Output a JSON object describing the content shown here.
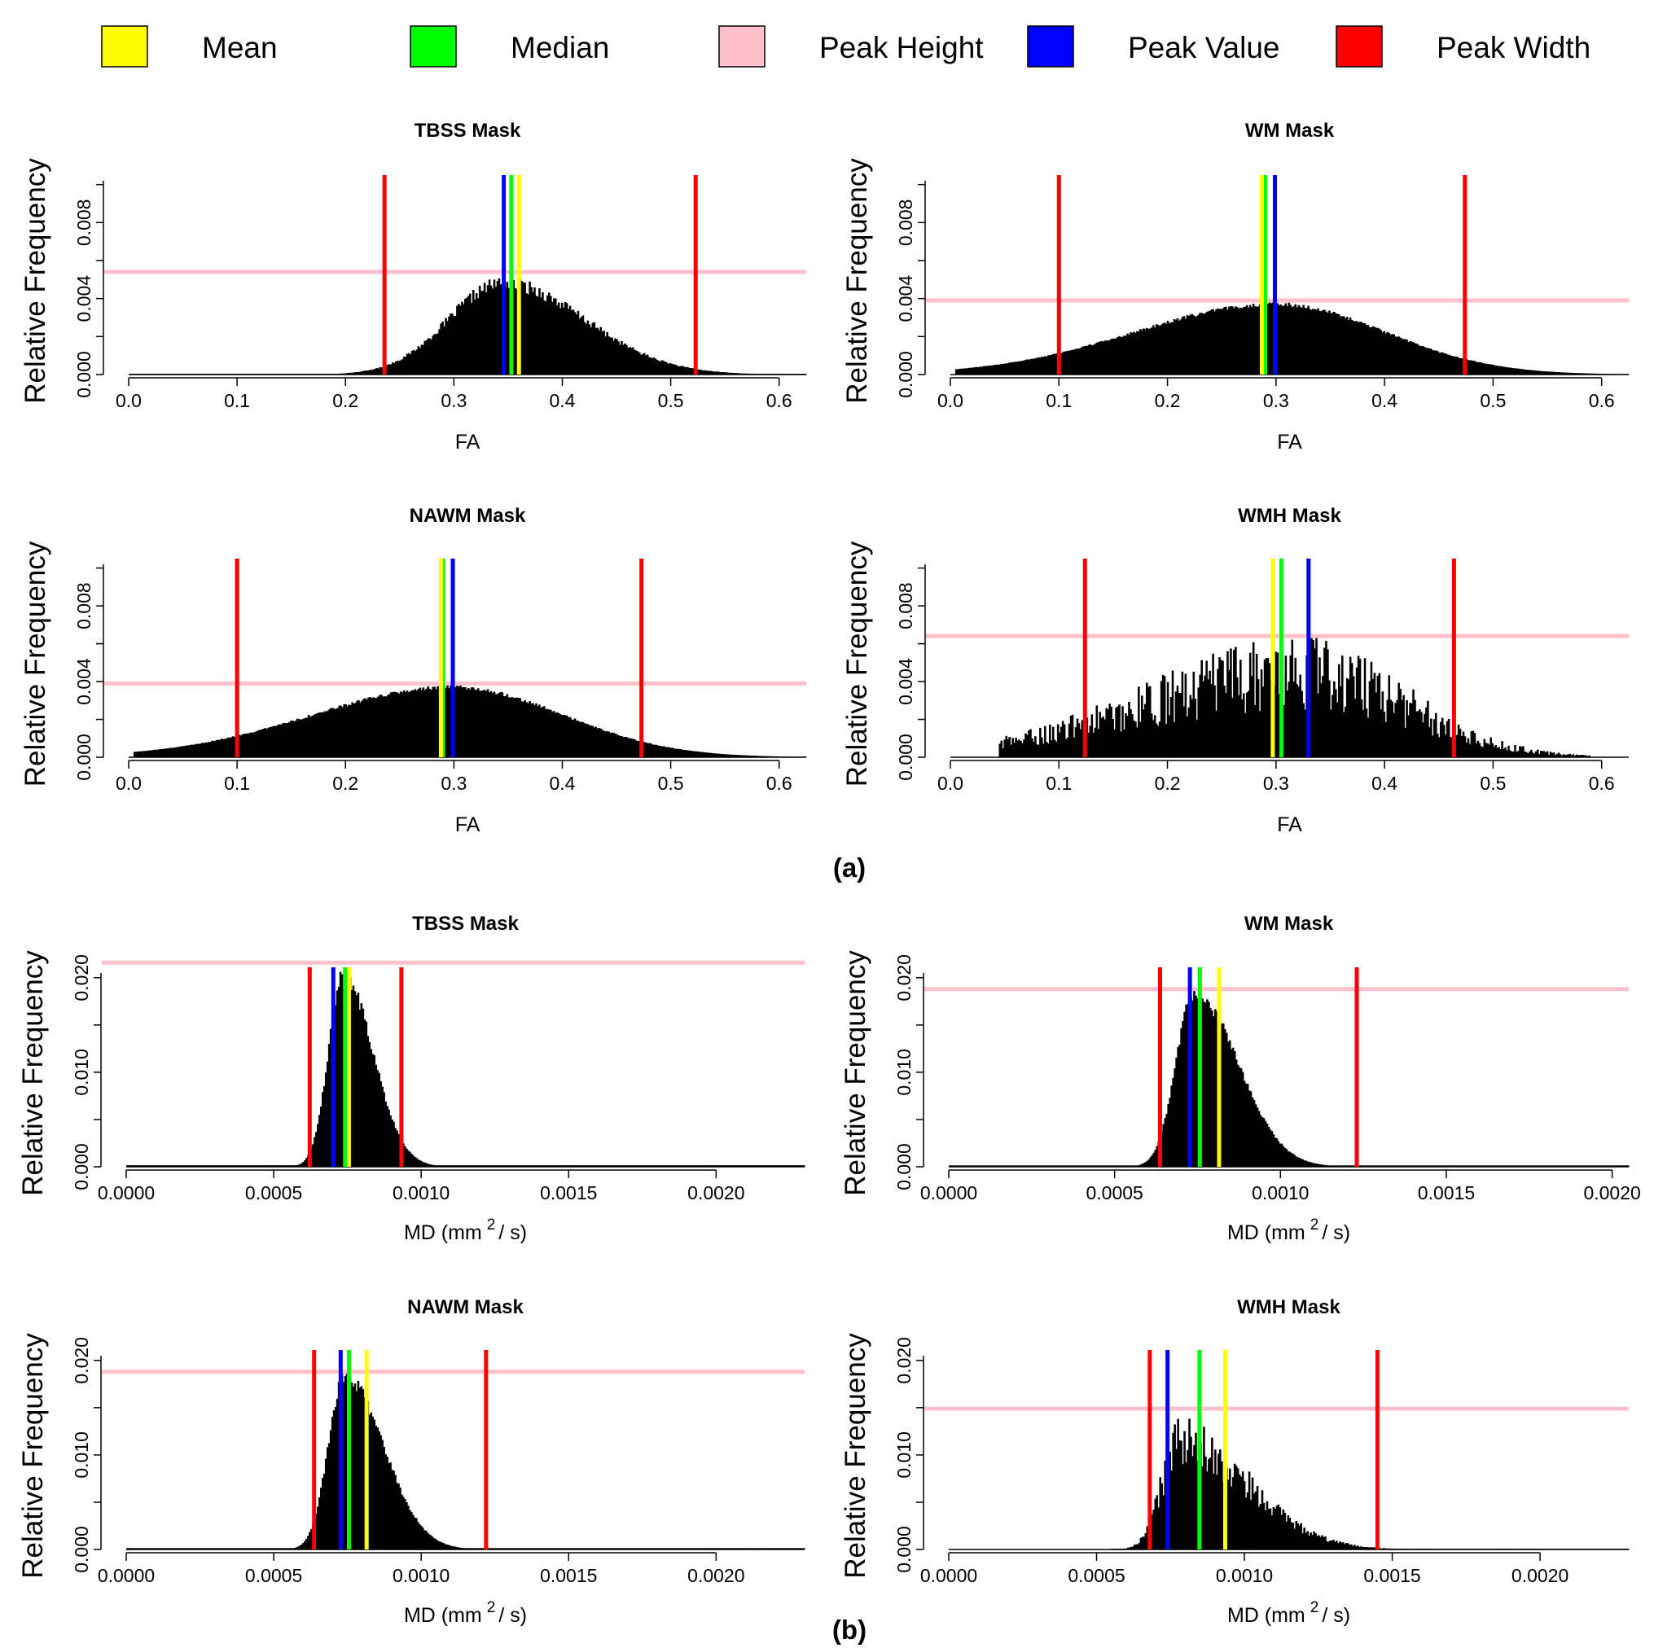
{
  "legend": [
    {
      "label": "Mean",
      "color": "#ffff00"
    },
    {
      "label": "Median",
      "color": "#00ff00"
    },
    {
      "label": "Peak Height",
      "color": "#ffc0cb"
    },
    {
      "label": "Peak Value",
      "color": "#0000ff"
    },
    {
      "label": "Peak Width",
      "color": "#ff0000"
    }
  ],
  "panel_labels": [
    "(a)",
    "(b)"
  ],
  "chart_data": [
    {
      "type": "bar",
      "title": "TBSS Mask",
      "xlabel": "FA",
      "ylabel": "Relative Frequency",
      "xlim": [
        0,
        0.625
      ],
      "ylim": [
        0,
        0.0102
      ],
      "xticks": [
        "0.0",
        "0.1",
        "0.2",
        "0.3",
        "0.4",
        "0.5",
        "0.6"
      ],
      "yticks": [
        "0.000",
        "0.004",
        "0.008"
      ],
      "distribution": {
        "start": 0.0,
        "end": 0.625,
        "peak_x": 0.345,
        "sigma_left": 0.05,
        "sigma_right": 0.075,
        "peak": 0.0048,
        "noise": 0.08
      },
      "markers": {
        "mean": 0.36,
        "median": 0.353,
        "peak_value": 0.346,
        "peak_height": 0.0054,
        "peak_width": [
          0.236,
          0.523
        ]
      }
    },
    {
      "type": "bar",
      "title": "WM Mask",
      "xlabel": "FA",
      "ylabel": "Relative Frequency",
      "xlim": [
        0,
        0.625
      ],
      "ylim": [
        0,
        0.0102
      ],
      "xticks": [
        "0.0",
        "0.1",
        "0.2",
        "0.3",
        "0.4",
        "0.5",
        "0.6"
      ],
      "yticks": [
        "0.000",
        "0.004",
        "0.008"
      ],
      "distribution": {
        "start": 0.005,
        "end": 0.625,
        "peak_x": 0.3,
        "sigma_left": 0.13,
        "sigma_right": 0.1,
        "peak": 0.0037,
        "noise": 0.03
      },
      "markers": {
        "mean": 0.287,
        "median": 0.29,
        "peak_value": 0.299,
        "peak_height": 0.0039,
        "peak_width": [
          0.1,
          0.474
        ]
      }
    },
    {
      "type": "bar",
      "title": "NAWM Mask",
      "xlabel": "FA",
      "ylabel": "Relative Frequency",
      "xlim": [
        0,
        0.625
      ],
      "ylim": [
        0,
        0.0102
      ],
      "xticks": [
        "0.0",
        "0.1",
        "0.2",
        "0.3",
        "0.4",
        "0.5",
        "0.6"
      ],
      "yticks": [
        "0.000",
        "0.004",
        "0.008"
      ],
      "distribution": {
        "start": 0.005,
        "end": 0.625,
        "peak_x": 0.3,
        "sigma_left": 0.13,
        "sigma_right": 0.1,
        "peak": 0.0037,
        "noise": 0.03
      },
      "markers": {
        "mean": 0.288,
        "median": 0.29,
        "peak_value": 0.299,
        "peak_height": 0.0039,
        "peak_width": [
          0.1,
          0.473
        ]
      }
    },
    {
      "type": "bar",
      "title": "WMH Mask",
      "xlabel": "FA",
      "ylabel": "Relative Frequency",
      "xlim": [
        0,
        0.625
      ],
      "ylim": [
        0,
        0.0102
      ],
      "xticks": [
        "0.0",
        "0.1",
        "0.2",
        "0.3",
        "0.4",
        "0.5",
        "0.6"
      ],
      "yticks": [
        "0.000",
        "0.004",
        "0.008"
      ],
      "distribution": {
        "start": 0.045,
        "end": 0.59,
        "peak_x": 0.33,
        "sigma_left": 0.15,
        "sigma_right": 0.09,
        "peak": 0.0045,
        "noise": 0.45
      },
      "markers": {
        "mean": 0.297,
        "median": 0.305,
        "peak_value": 0.33,
        "peak_height": 0.0064,
        "peak_width": [
          0.124,
          0.464
        ]
      }
    },
    {
      "type": "bar",
      "title": "TBSS Mask",
      "xlabel": "MD (mm",
      "xlabel_sup": "2",
      "xlabel_tail": "/ s)",
      "ylabel": "Relative Frequency",
      "xlim": [
        0,
        0.0023
      ],
      "ylim": [
        0,
        0.0205
      ],
      "xticks": [
        "0.0000",
        "0.0005",
        "0.0010",
        "0.0015",
        "0.0020"
      ],
      "yticks": [
        "0.000",
        "0.010",
        "0.020"
      ],
      "distribution": {
        "start": 0.0,
        "end": 0.0023,
        "peak_x": 0.000735,
        "sigma_left": 5e-05,
        "sigma_right": 0.0001,
        "peak": 0.0202,
        "noise": 0.04
      },
      "markers": {
        "mean": 0.000755,
        "median": 0.000742,
        "peak_value": 0.000702,
        "peak_height": 0.0216,
        "peak_width": [
          0.000622,
          0.000933
        ]
      }
    },
    {
      "type": "bar",
      "title": "WM Mask",
      "xlabel": "MD (mm",
      "xlabel_sup": "2",
      "xlabel_tail": "/ s)",
      "ylabel": "Relative Frequency",
      "xlim": [
        0,
        0.00205
      ],
      "ylim": [
        0,
        0.0205
      ],
      "xticks": [
        "0.0000",
        "0.0005",
        "0.0010",
        "0.0015",
        "0.0020"
      ],
      "yticks": [
        "0.000",
        "0.010",
        "0.020"
      ],
      "distribution": {
        "start": 0.0,
        "end": 0.00205,
        "peak_x": 0.00074,
        "sigma_left": 5.5e-05,
        "sigma_right": 0.00013,
        "peak": 0.0183,
        "noise": 0.04
      },
      "markers": {
        "mean": 0.000815,
        "median": 0.000757,
        "peak_value": 0.000727,
        "peak_height": 0.0188,
        "peak_width": [
          0.000637,
          0.00123
        ]
      }
    },
    {
      "type": "bar",
      "title": "NAWM Mask",
      "xlabel": "MD (mm",
      "xlabel_sup": "2",
      "xlabel_tail": "/ s)",
      "ylabel": "Relative Frequency",
      "xlim": [
        0,
        0.0023
      ],
      "ylim": [
        0,
        0.0205
      ],
      "xticks": [
        "0.0000",
        "0.0005",
        "0.0010",
        "0.0015",
        "0.0020"
      ],
      "yticks": [
        "0.000",
        "0.010",
        "0.020"
      ],
      "distribution": {
        "start": 0.0,
        "end": 0.0023,
        "peak_x": 0.00074,
        "sigma_left": 5.5e-05,
        "sigma_right": 0.00013,
        "peak": 0.0183,
        "noise": 0.04
      },
      "markers": {
        "mean": 0.000815,
        "median": 0.000755,
        "peak_value": 0.000727,
        "peak_height": 0.0188,
        "peak_width": [
          0.000637,
          0.00122
        ]
      }
    },
    {
      "type": "bar",
      "title": "WMH Mask",
      "xlabel": "MD (mm",
      "xlabel_sup": "2",
      "xlabel_tail": "/ s)",
      "ylabel": "Relative Frequency",
      "xlim": [
        0,
        0.0023
      ],
      "ylim": [
        0,
        0.0205
      ],
      "xticks": [
        "0.0000",
        "0.0005",
        "0.0010",
        "0.0015",
        "0.0020"
      ],
      "yticks": [
        "0.000",
        "0.010",
        "0.020"
      ],
      "distribution": {
        "start": 0.00055,
        "end": 0.0023,
        "peak_x": 0.00078,
        "sigma_left": 6e-05,
        "sigma_right": 0.00023,
        "peak": 0.0112,
        "noise": 0.25
      },
      "markers": {
        "mean": 0.000935,
        "median": 0.000848,
        "peak_value": 0.00074,
        "peak_height": 0.0149,
        "peak_width": [
          0.00068,
          0.00145
        ]
      }
    }
  ]
}
